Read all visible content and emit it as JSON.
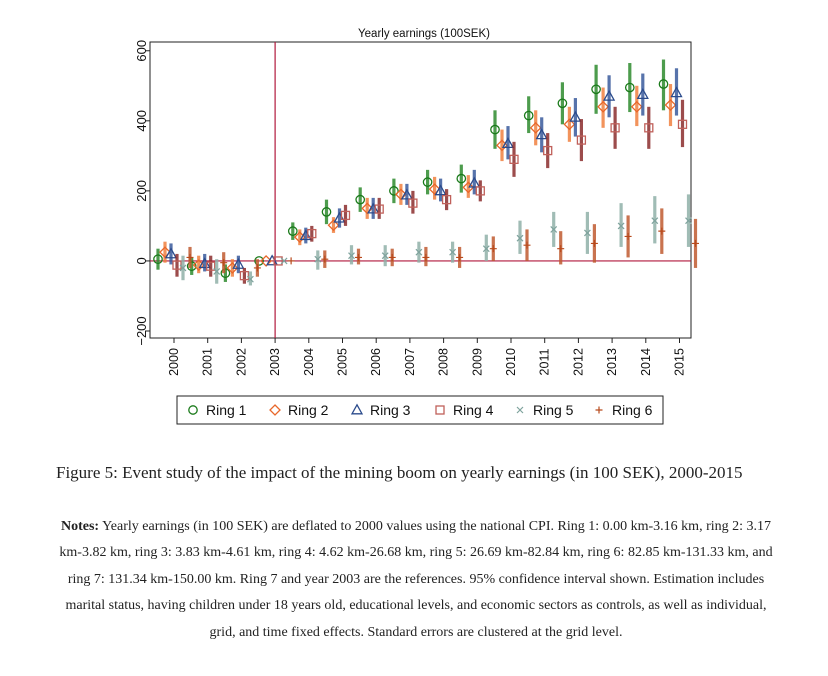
{
  "chart_data": {
    "type": "scatter",
    "title": "Yearly earnings (100SEK)",
    "xlabel": "",
    "ylabel": "",
    "x": [
      "2000",
      "2001",
      "2002",
      "2003",
      "2004",
      "2005",
      "2006",
      "2007",
      "2008",
      "2009",
      "2010",
      "2011",
      "2012",
      "2013",
      "2014",
      "2015"
    ],
    "ylim": [
      -220,
      625
    ],
    "yticks": [
      -200,
      0,
      200,
      400,
      600
    ],
    "reference_year": "2003",
    "reference_value": 0,
    "grid": false,
    "legend_position": "bottom",
    "error_bars": "95% CI",
    "series": [
      {
        "name": "Ring 1",
        "marker": "circle",
        "color": "#1a7a1a",
        "ci_color": "#2e8b2e",
        "values": [
          5,
          -15,
          -35,
          0,
          85,
          140,
          175,
          200,
          225,
          235,
          375,
          415,
          450,
          490,
          495,
          505
        ],
        "ci": [
          [
            -25,
            35
          ],
          [
            -40,
            10
          ],
          [
            -60,
            -10
          ],
          [
            0,
            0
          ],
          [
            60,
            110
          ],
          [
            105,
            175
          ],
          [
            140,
            210
          ],
          [
            165,
            235
          ],
          [
            190,
            260
          ],
          [
            195,
            275
          ],
          [
            320,
            430
          ],
          [
            365,
            470
          ],
          [
            390,
            510
          ],
          [
            420,
            560
          ],
          [
            425,
            565
          ],
          [
            430,
            575
          ]
        ]
      },
      {
        "name": "Ring 2",
        "marker": "diamond",
        "color": "#e8672a",
        "ci_color": "#f08040",
        "values": [
          25,
          -12,
          -20,
          0,
          68,
          102,
          150,
          190,
          205,
          210,
          330,
          380,
          390,
          440,
          440,
          445
        ],
        "ci": [
          [
            -5,
            55
          ],
          [
            -35,
            15
          ],
          [
            -45,
            5
          ],
          [
            0,
            0
          ],
          [
            45,
            90
          ],
          [
            80,
            125
          ],
          [
            120,
            180
          ],
          [
            160,
            220
          ],
          [
            175,
            240
          ],
          [
            180,
            245
          ],
          [
            285,
            375
          ],
          [
            330,
            430
          ],
          [
            340,
            440
          ],
          [
            380,
            495
          ],
          [
            385,
            500
          ],
          [
            385,
            505
          ]
        ]
      },
      {
        "name": "Ring 3",
        "marker": "triangle",
        "color": "#2b4b8c",
        "ci_color": "#3a5a9c",
        "values": [
          20,
          -8,
          -10,
          0,
          72,
          122,
          148,
          188,
          200,
          222,
          335,
          360,
          410,
          470,
          475,
          480
        ],
        "ci": [
          [
            -10,
            50
          ],
          [
            -30,
            20
          ],
          [
            -35,
            15
          ],
          [
            0,
            0
          ],
          [
            50,
            95
          ],
          [
            95,
            150
          ],
          [
            120,
            180
          ],
          [
            160,
            220
          ],
          [
            170,
            235
          ],
          [
            190,
            260
          ],
          [
            290,
            385
          ],
          [
            310,
            410
          ],
          [
            355,
            465
          ],
          [
            410,
            530
          ],
          [
            415,
            535
          ],
          [
            415,
            550
          ]
        ]
      },
      {
        "name": "Ring 4",
        "marker": "square",
        "color": "#c0605a",
        "ci_color": "#8b2d2d",
        "values": [
          -12,
          -15,
          -42,
          0,
          78,
          130,
          148,
          165,
          175,
          200,
          290,
          315,
          345,
          380,
          380,
          390
        ],
        "ci": [
          [
            -45,
            20
          ],
          [
            -45,
            15
          ],
          [
            -65,
            -20
          ],
          [
            0,
            0
          ],
          [
            55,
            100
          ],
          [
            100,
            160
          ],
          [
            120,
            180
          ],
          [
            135,
            200
          ],
          [
            145,
            205
          ],
          [
            170,
            230
          ],
          [
            240,
            340
          ],
          [
            265,
            365
          ],
          [
            285,
            405
          ],
          [
            320,
            440
          ],
          [
            320,
            440
          ],
          [
            325,
            460
          ]
        ]
      },
      {
        "name": "Ring 5",
        "marker": "x",
        "color": "#7fa39d",
        "ci_color": "#8fb0a8",
        "values": [
          -20,
          -30,
          -52,
          0,
          5,
          15,
          15,
          25,
          25,
          35,
          65,
          90,
          80,
          100,
          115,
          115
        ],
        "ci": [
          [
            -55,
            15
          ],
          [
            -65,
            5
          ],
          [
            -70,
            -30
          ],
          [
            0,
            0
          ],
          [
            -25,
            30
          ],
          [
            -10,
            45
          ],
          [
            -15,
            45
          ],
          [
            -5,
            55
          ],
          [
            -5,
            55
          ],
          [
            0,
            75
          ],
          [
            20,
            115
          ],
          [
            40,
            140
          ],
          [
            20,
            140
          ],
          [
            40,
            165
          ],
          [
            50,
            185
          ],
          [
            40,
            190
          ]
        ]
      },
      {
        "name": "Ring 6",
        "marker": "plus",
        "color": "#b84a1c",
        "ci_color": "#c05a30",
        "values": [
          10,
          -5,
          -20,
          0,
          5,
          10,
          10,
          10,
          10,
          35,
          45,
          35,
          50,
          70,
          85,
          50
        ],
        "ci": [
          [
            -20,
            40
          ],
          [
            -35,
            25
          ],
          [
            -45,
            5
          ],
          [
            0,
            0
          ],
          [
            -20,
            30
          ],
          [
            -10,
            35
          ],
          [
            -15,
            35
          ],
          [
            -15,
            40
          ],
          [
            -20,
            40
          ],
          [
            0,
            70
          ],
          [
            0,
            90
          ],
          [
            -10,
            85
          ],
          [
            -5,
            105
          ],
          [
            10,
            130
          ],
          [
            20,
            150
          ],
          [
            -20,
            120
          ]
        ]
      }
    ]
  },
  "caption": "Figure 5: Event study of the impact of the mining boom on yearly earnings (in 100 SEK), 2000-2015",
  "notes": {
    "label": "Notes:",
    "text": "Yearly earnings (in 100 SEK) are deflated to 2000 values using the national CPI. Ring 1: 0.00 km-3.16 km, ring 2: 3.17 km-3.82 km, ring 3: 3.83 km-4.61 km, ring 4: 4.62 km-26.68 km, ring 5: 26.69 km-82.84 km, ring 6: 82.85 km-131.33 km, and ring 7: 131.34 km-150.00 km. Ring 7 and year 2003 are the references. 95% confidence interval shown. Estimation includes marital status, having children under 18 years old, educational levels, and economic sectors as controls, as well as individual, grid, and time fixed effects. Standard errors are clustered at the grid level."
  }
}
